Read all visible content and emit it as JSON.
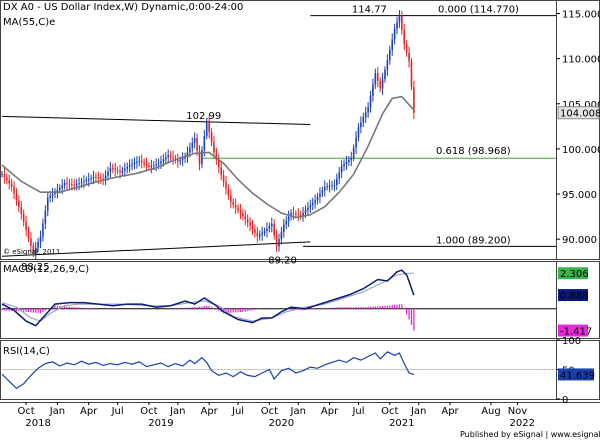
{
  "chart_data": [
    {
      "type": "candlestick",
      "title": "DX A0 - US Dollar Index,W) Dynamic,0:00-24:00",
      "overlay_label": "MA(55,C)e",
      "copyright": "© eSignal, 2011",
      "ylim": [
        87.8,
        116.5
      ],
      "yticks": [
        90.0,
        95.0,
        100.0,
        105.0,
        110.0,
        115.0
      ],
      "ytick_labels": [
        "90.000",
        "95.000",
        "100.000",
        "105.000",
        "110.000",
        "115.000"
      ],
      "last_price_label": "104.008",
      "last_price": 104.008,
      "price_path": [
        [
          0,
          97.2
        ],
        [
          4,
          95.8
        ],
        [
          8,
          92.8
        ],
        [
          11,
          90.1
        ],
        [
          13,
          88.4
        ],
        [
          16,
          90.3
        ],
        [
          19,
          94.6
        ],
        [
          22,
          95.2
        ],
        [
          26,
          96.2
        ],
        [
          30,
          96.0
        ],
        [
          34,
          96.4
        ],
        [
          38,
          96.9
        ],
        [
          42,
          96.6
        ],
        [
          45,
          97.9
        ],
        [
          49,
          97.4
        ],
        [
          53,
          98.2
        ],
        [
          57,
          98.7
        ],
        [
          61,
          98.0
        ],
        [
          65,
          98.4
        ],
        [
          69,
          99.3
        ],
        [
          73,
          98.6
        ],
        [
          76,
          99.1
        ],
        [
          80,
          101.2
        ],
        [
          82,
          98.3
        ],
        [
          85,
          102.99
        ],
        [
          88,
          99.6
        ],
        [
          91,
          97.1
        ],
        [
          95,
          94.1
        ],
        [
          99,
          92.9
        ],
        [
          103,
          91.5
        ],
        [
          106,
          90.3
        ],
        [
          109,
          90.9
        ],
        [
          112,
          91.7
        ],
        [
          114,
          89.2
        ],
        [
          117,
          91.6
        ],
        [
          120,
          92.9
        ],
        [
          124,
          92.6
        ],
        [
          127,
          93.5
        ],
        [
          130,
          94.3
        ],
        [
          134,
          95.8
        ],
        [
          138,
          96.0
        ],
        [
          141,
          98.1
        ],
        [
          145,
          99.0
        ],
        [
          148,
          102.4
        ],
        [
          152,
          104.6
        ],
        [
          155,
          108.4
        ],
        [
          157,
          106.7
        ],
        [
          160,
          109.8
        ],
        [
          163,
          113.3
        ],
        [
          165,
          114.77
        ],
        [
          167,
          111.6
        ],
        [
          169,
          109.7
        ],
        [
          171,
          104.008
        ]
      ],
      "moving_average": [
        [
          0,
          98.2
        ],
        [
          8,
          96.4
        ],
        [
          16,
          95.2
        ],
        [
          24,
          95.2
        ],
        [
          32,
          95.8
        ],
        [
          40,
          96.4
        ],
        [
          48,
          96.9
        ],
        [
          56,
          97.3
        ],
        [
          64,
          97.9
        ],
        [
          72,
          98.8
        ],
        [
          80,
          99.5
        ],
        [
          86,
          99.6
        ],
        [
          92,
          98.4
        ],
        [
          98,
          96.6
        ],
        [
          104,
          95.1
        ],
        [
          110,
          93.9
        ],
        [
          116,
          92.9
        ],
        [
          122,
          92.4
        ],
        [
          128,
          92.7
        ],
        [
          134,
          93.6
        ],
        [
          140,
          95.2
        ],
        [
          146,
          97.2
        ],
        [
          152,
          100.3
        ],
        [
          158,
          103.9
        ],
        [
          162,
          105.6
        ],
        [
          166,
          105.8
        ],
        [
          171,
          104.3
        ]
      ],
      "annotations": {
        "peak_2018_20": {
          "value": 102.99,
          "label": "102.99",
          "index": 85
        },
        "low_2018": {
          "value": 88.25,
          "label": "88.25",
          "index": 13
        },
        "low_2021": {
          "value": 89.2,
          "label": "89.20",
          "index": 114
        },
        "high_2022": {
          "value": 114.77,
          "label": "114.77",
          "index": 165
        },
        "fib_0": {
          "value": 114.77,
          "label": "0.000 (114.770)"
        },
        "fib_0618": {
          "value": 98.968,
          "label": "0.618 (98.968)",
          "color": "#3fa82e"
        },
        "fib_1": {
          "value": 89.2,
          "label": "1.000 (89.200)"
        }
      },
      "trendlines": {
        "upper": [
          [
            0,
            103.6
          ],
          [
            128,
            102.7
          ]
        ],
        "lower": [
          [
            0,
            88.1
          ],
          [
            128,
            89.7
          ]
        ]
      },
      "colors": {
        "up": "#1a3fb0",
        "down": "#e02424",
        "ma": "#777777",
        "fib_0618": "#3fa82e"
      }
    },
    {
      "type": "line",
      "title": "MACD(12,26,9,C)",
      "ylim": [
        -1.9,
        3.1
      ],
      "value_labels": {
        "signal": "2.306",
        "macd": "0.888",
        "hist": "-1.417"
      },
      "macd": [
        [
          0,
          0.3
        ],
        [
          5,
          -0.1
        ],
        [
          10,
          -0.8
        ],
        [
          14,
          -1.1
        ],
        [
          18,
          -0.4
        ],
        [
          22,
          0.3
        ],
        [
          28,
          0.4
        ],
        [
          34,
          0.4
        ],
        [
          40,
          0.3
        ],
        [
          46,
          0.2
        ],
        [
          52,
          0.3
        ],
        [
          58,
          0.3
        ],
        [
          64,
          0.1
        ],
        [
          70,
          0.2
        ],
        [
          76,
          0.5
        ],
        [
          80,
          0.3
        ],
        [
          84,
          0.7
        ],
        [
          88,
          0.3
        ],
        [
          92,
          -0.2
        ],
        [
          98,
          -0.7
        ],
        [
          104,
          -0.9
        ],
        [
          108,
          -0.6
        ],
        [
          112,
          -0.6
        ],
        [
          116,
          -0.2
        ],
        [
          120,
          0.1
        ],
        [
          126,
          0.0
        ],
        [
          132,
          0.3
        ],
        [
          138,
          0.6
        ],
        [
          144,
          0.9
        ],
        [
          150,
          1.3
        ],
        [
          156,
          1.9
        ],
        [
          160,
          1.8
        ],
        [
          164,
          2.4
        ],
        [
          166,
          2.5
        ],
        [
          168,
          2.2
        ],
        [
          171,
          0.888
        ]
      ],
      "signal": [
        [
          0,
          0.4
        ],
        [
          6,
          0.1
        ],
        [
          12,
          -0.6
        ],
        [
          16,
          -0.8
        ],
        [
          20,
          -0.3
        ],
        [
          26,
          0.2
        ],
        [
          32,
          0.3
        ],
        [
          40,
          0.3
        ],
        [
          50,
          0.3
        ],
        [
          60,
          0.2
        ],
        [
          70,
          0.2
        ],
        [
          78,
          0.4
        ],
        [
          84,
          0.5
        ],
        [
          90,
          0.2
        ],
        [
          96,
          -0.5
        ],
        [
          104,
          -0.8
        ],
        [
          112,
          -0.6
        ],
        [
          118,
          -0.2
        ],
        [
          126,
          0.1
        ],
        [
          134,
          0.3
        ],
        [
          142,
          0.7
        ],
        [
          150,
          1.1
        ],
        [
          158,
          1.7
        ],
        [
          164,
          2.2
        ],
        [
          168,
          2.3
        ],
        [
          171,
          2.306
        ]
      ],
      "histogram": [
        [
          0,
          -0.1
        ],
        [
          10,
          -0.2
        ],
        [
          16,
          -0.3
        ],
        [
          22,
          0.2
        ],
        [
          30,
          0.1
        ],
        [
          40,
          0.0
        ],
        [
          50,
          0.0
        ],
        [
          60,
          0.0
        ],
        [
          70,
          0.0
        ],
        [
          80,
          0.1
        ],
        [
          86,
          0.2
        ],
        [
          92,
          -0.3
        ],
        [
          100,
          -0.2
        ],
        [
          108,
          0.0
        ],
        [
          116,
          0.0
        ],
        [
          124,
          -0.1
        ],
        [
          132,
          0.0
        ],
        [
          140,
          0.1
        ],
        [
          150,
          0.1
        ],
        [
          160,
          0.2
        ],
        [
          166,
          0.3
        ],
        [
          169,
          -0.7
        ],
        [
          171,
          -1.417
        ]
      ],
      "colors": {
        "macd": "#0a1a7a",
        "signal": "#9aa6c2",
        "hist": "#e12ad6"
      }
    },
    {
      "type": "line",
      "title": "RSI(14,C)",
      "ylim": [
        0,
        100
      ],
      "yticks": [
        100,
        50,
        0
      ],
      "ytick_labels": [
        "100",
        "50",
        "0"
      ],
      "value_label": "41.639",
      "rsi": [
        [
          0,
          42
        ],
        [
          3,
          30
        ],
        [
          6,
          18
        ],
        [
          9,
          26
        ],
        [
          12,
          40
        ],
        [
          15,
          52
        ],
        [
          18,
          60
        ],
        [
          21,
          63
        ],
        [
          24,
          56
        ],
        [
          27,
          61
        ],
        [
          30,
          58
        ],
        [
          33,
          64
        ],
        [
          36,
          59
        ],
        [
          39,
          62
        ],
        [
          42,
          57
        ],
        [
          45,
          60
        ],
        [
          48,
          58
        ],
        [
          51,
          62
        ],
        [
          54,
          59
        ],
        [
          57,
          63
        ],
        [
          60,
          55
        ],
        [
          63,
          58
        ],
        [
          66,
          61
        ],
        [
          69,
          55
        ],
        [
          72,
          60
        ],
        [
          75,
          56
        ],
        [
          78,
          66
        ],
        [
          80,
          60
        ],
        [
          83,
          70
        ],
        [
          85,
          62
        ],
        [
          87,
          48
        ],
        [
          90,
          40
        ],
        [
          93,
          44
        ],
        [
          96,
          38
        ],
        [
          99,
          46
        ],
        [
          102,
          40
        ],
        [
          105,
          38
        ],
        [
          108,
          44
        ],
        [
          111,
          50
        ],
        [
          113,
          34
        ],
        [
          116,
          48
        ],
        [
          119,
          52
        ],
        [
          122,
          44
        ],
        [
          125,
          48
        ],
        [
          128,
          54
        ],
        [
          131,
          52
        ],
        [
          134,
          58
        ],
        [
          137,
          62
        ],
        [
          140,
          66
        ],
        [
          143,
          62
        ],
        [
          146,
          70
        ],
        [
          149,
          66
        ],
        [
          152,
          72
        ],
        [
          155,
          78
        ],
        [
          157,
          68
        ],
        [
          160,
          80
        ],
        [
          163,
          74
        ],
        [
          165,
          78
        ],
        [
          167,
          60
        ],
        [
          169,
          44
        ],
        [
          171,
          41.639
        ]
      ],
      "colors": {
        "rsi": "#1a3fb0"
      }
    }
  ],
  "x_axis": {
    "labels": [
      {
        "label": "Oct",
        "index": 10
      },
      {
        "label": "Jan",
        "index": 23
      },
      {
        "label": "Apr",
        "index": 36
      },
      {
        "label": "Jul",
        "index": 48
      },
      {
        "label": "Oct",
        "index": 61
      },
      {
        "label": "Jan",
        "index": 73
      },
      {
        "label": "Apr",
        "index": 86
      },
      {
        "label": "Jul",
        "index": 98
      },
      {
        "label": "Oct",
        "index": 111
      },
      {
        "label": "Jan",
        "index": 123
      },
      {
        "label": "Apr",
        "index": 136
      },
      {
        "label": "Jul",
        "index": 148
      },
      {
        "label": "Oct",
        "index": 161
      },
      {
        "label": "Jan",
        "index": 173
      },
      {
        "label": "Apr",
        "index": 186
      },
      {
        "label": "Aug",
        "index": 203
      },
      {
        "label": "Nov",
        "index": 214
      }
    ],
    "years": [
      {
        "label": "2018",
        "index": 10
      },
      {
        "label": "2019",
        "index": 61
      },
      {
        "label": "2020",
        "index": 111
      },
      {
        "label": "2021",
        "index": 161
      },
      {
        "label": "2022",
        "index": 211
      }
    ]
  },
  "footer": {
    "text": "Published by eSignal | www.esignal.com"
  },
  "colors": {
    "grid": "#d0d0d0",
    "text": "#000000",
    "border": "#444444"
  }
}
